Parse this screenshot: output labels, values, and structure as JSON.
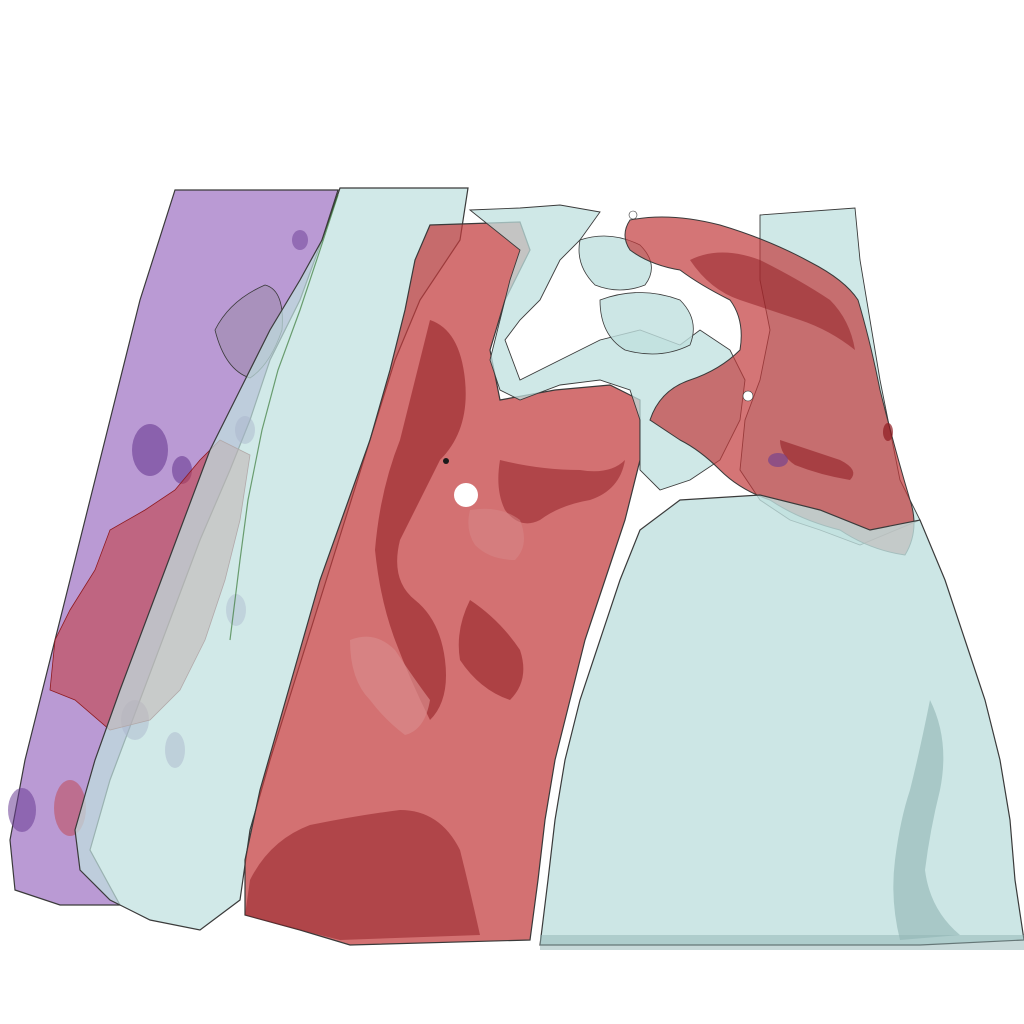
{
  "scene": {
    "background_color": "#ffffff",
    "layers": [
      {
        "name": "purple-layer",
        "color": "#a77ec8"
      },
      {
        "name": "cyan-layer",
        "color": "#bfe0df"
      },
      {
        "name": "red-layer",
        "color": "#c23a3c"
      }
    ],
    "accent_colors": {
      "deep_red": "#8e1a1f",
      "dark_purple": "#6a3c93",
      "shadow_teal": "#8fb4b3",
      "edge_line": "#3a3a3a",
      "green_edge": "#3c7a3a"
    }
  }
}
